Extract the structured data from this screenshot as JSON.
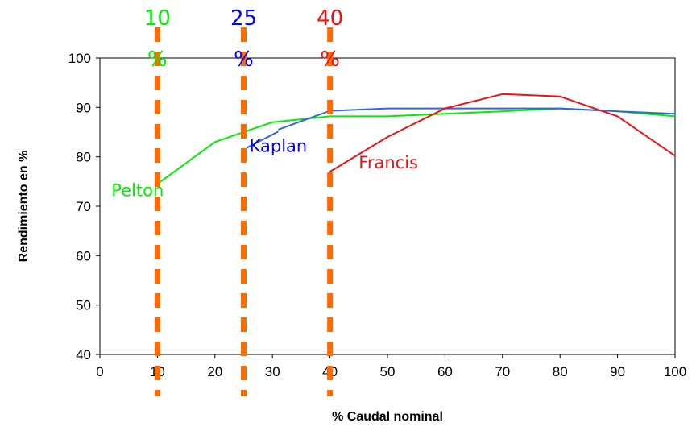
{
  "chart_data": {
    "type": "line",
    "xlabel": "% Caudal nominal",
    "ylabel": "Rendimiento en %",
    "xlim": [
      0,
      100
    ],
    "ylim": [
      40,
      100
    ],
    "x_ticks": [
      "0",
      "10",
      "20",
      "30",
      "40",
      "50",
      "60",
      "70",
      "80",
      "90",
      "100"
    ],
    "y_ticks": [
      "40",
      "50",
      "60",
      "70",
      "80",
      "90",
      "100"
    ],
    "grid": false,
    "series": [
      {
        "name": "Pelton",
        "color": "#00ee00",
        "points": [
          [
            10,
            74.5
          ],
          [
            20,
            83
          ],
          [
            30,
            87
          ],
          [
            40,
            88.2
          ],
          [
            50,
            88.2
          ],
          [
            60,
            88.7
          ],
          [
            70,
            89.2
          ],
          [
            80,
            89.8
          ],
          [
            90,
            89.2
          ],
          [
            100,
            88.2
          ]
        ]
      },
      {
        "name": "Kaplan",
        "color": "#3366dd",
        "points": [
          [
            31,
            85.5
          ],
          [
            40,
            89.3
          ],
          [
            50,
            89.8
          ],
          [
            60,
            89.8
          ],
          [
            70,
            89.8
          ],
          [
            80,
            89.8
          ],
          [
            90,
            89.2
          ],
          [
            100,
            88.7
          ]
        ]
      },
      {
        "name": "Francis",
        "color": "#ee1111",
        "points": [
          [
            40,
            77
          ],
          [
            50,
            84
          ],
          [
            60,
            89.8
          ],
          [
            70,
            92.7
          ],
          [
            80,
            92.2
          ],
          [
            90,
            88.2
          ],
          [
            100,
            80.2
          ]
        ]
      }
    ],
    "series_labels": [
      {
        "text": "Pelton",
        "x": 2,
        "y": 72,
        "color": "#00ee00"
      },
      {
        "text": "Kaplan",
        "x": 26,
        "y": 81,
        "color": "#0000ff"
      },
      {
        "text": "Francis",
        "x": 45,
        "y": 77.7,
        "color": "#ee1111"
      }
    ],
    "kaplan_pointer": [
      [
        25.5,
        81.8
      ],
      [
        31,
        85.1
      ]
    ],
    "annotations": [
      {
        "x": 10,
        "number": "10",
        "percent": "%",
        "color": "#00ee00"
      },
      {
        "x": 25,
        "number": "25",
        "percent": "%",
        "color": "#0000ff"
      },
      {
        "x": 40,
        "number": "40",
        "percent": "%",
        "color": "#ee1111"
      }
    ],
    "guide_line_color": "#ff6b00"
  }
}
